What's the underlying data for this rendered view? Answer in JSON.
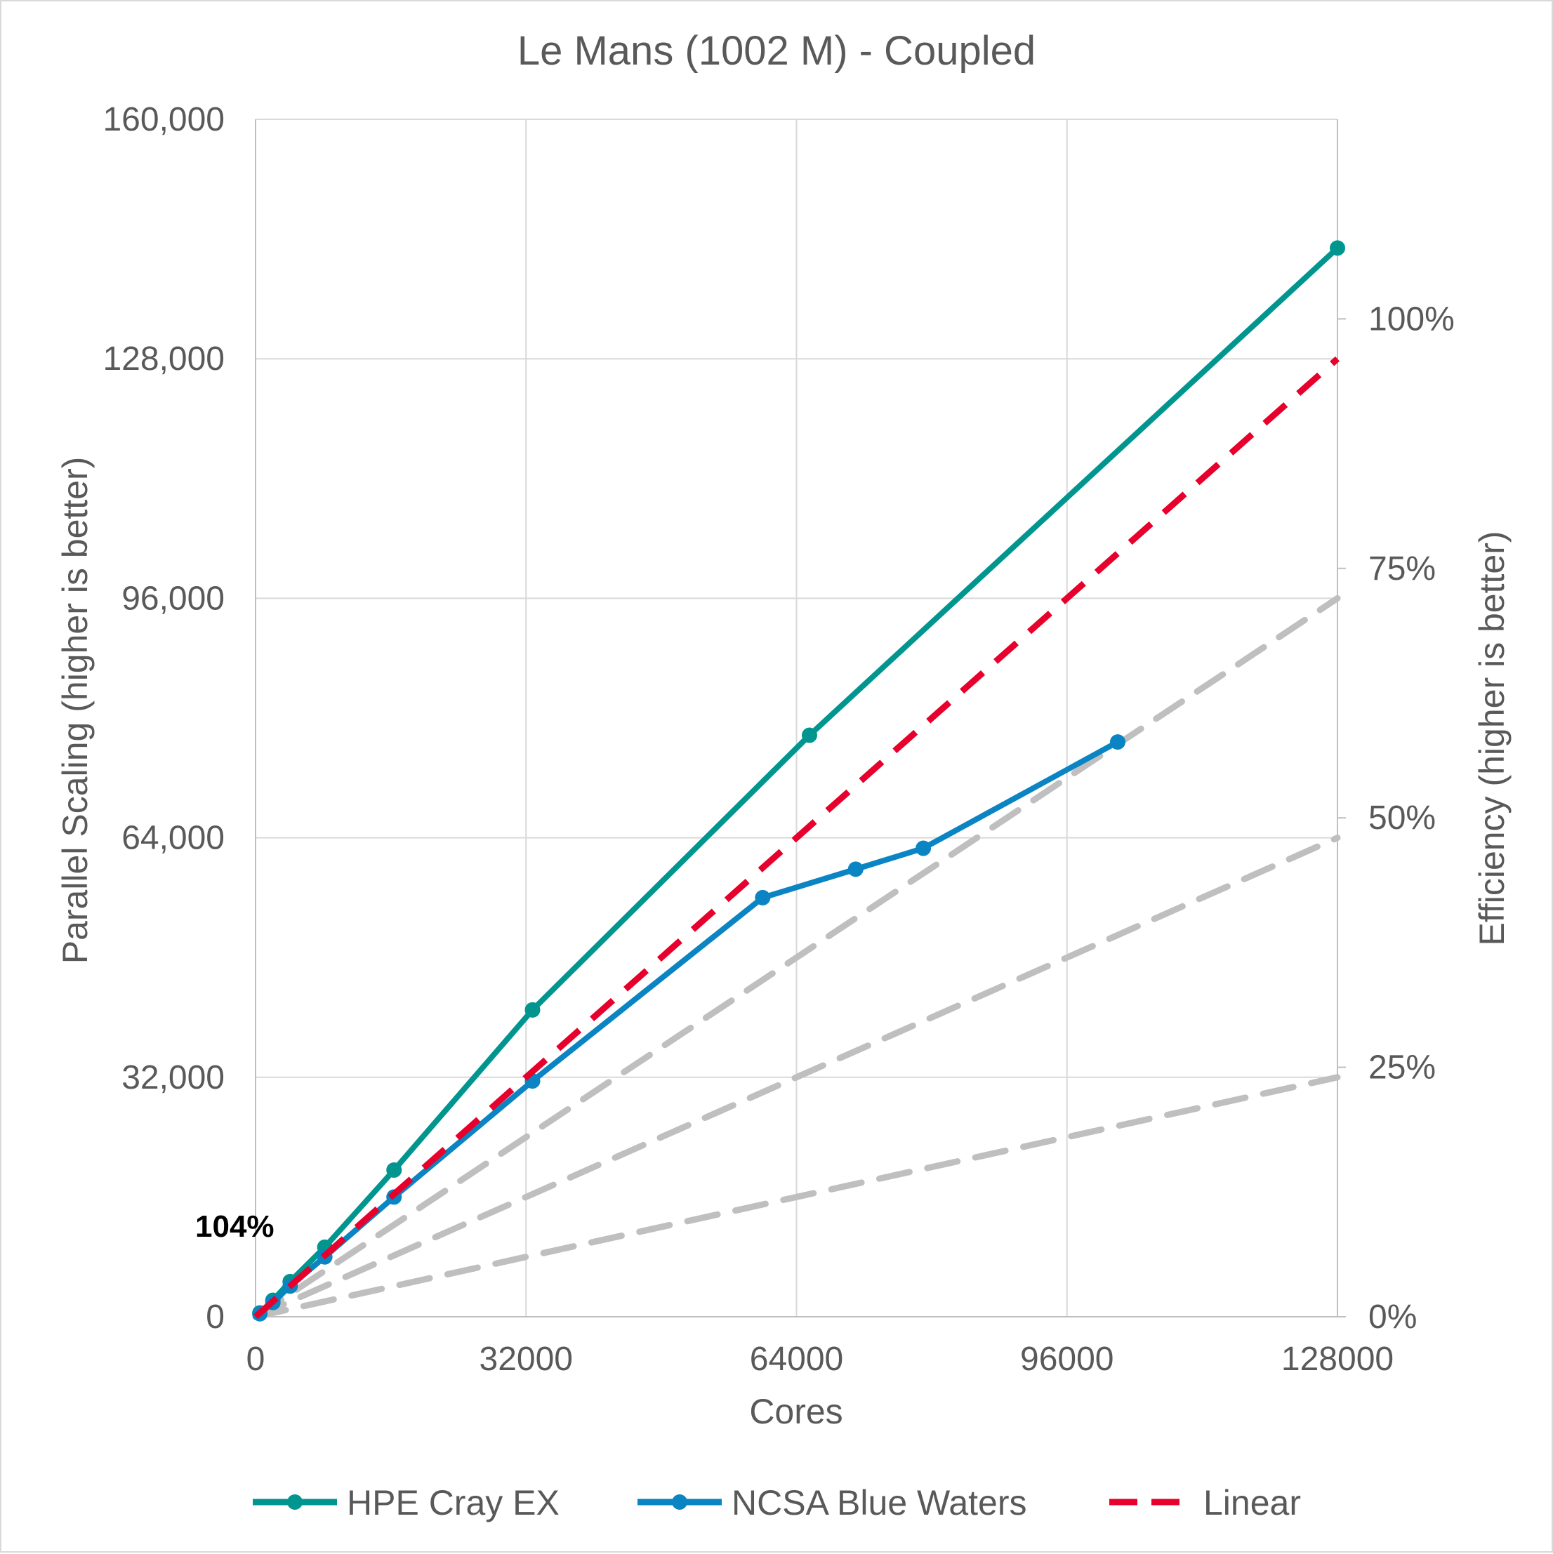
{
  "chart_data": {
    "type": "line",
    "title": "Le Mans (1002 M) - Coupled",
    "xlabel": "Cores",
    "ylabel": "Parallel Scaling (higher is better)",
    "y2label": "Efficiency (higher is better)",
    "xlim": [
      0,
      128000
    ],
    "ylim": [
      0,
      160000
    ],
    "y2lim": [
      0,
      1.2
    ],
    "x_ticks": [
      0,
      32000,
      64000,
      96000,
      128000
    ],
    "x_tick_labels": [
      "0",
      "32000",
      "64000",
      "96000",
      "128000"
    ],
    "y_ticks": [
      0,
      32000,
      64000,
      96000,
      128000,
      160000
    ],
    "y_tick_labels": [
      "0",
      "32,000",
      "64,000",
      "96,000",
      "128,000",
      "160,000"
    ],
    "y2_ticks": [
      0,
      0.25,
      0.5,
      0.75,
      1.0
    ],
    "y2_tick_labels": [
      "0%",
      "25%",
      "50%",
      "75%",
      "100%"
    ],
    "grid": true,
    "legend_position": "bottom",
    "series": [
      {
        "name": "HPE Cray EX",
        "color": "#00968f",
        "style": "solid",
        "marker": true,
        "points": [
          [
            512,
            512
          ],
          [
            2048,
            2200
          ],
          [
            4096,
            4700
          ],
          [
            8192,
            9300
          ],
          [
            16384,
            19600
          ],
          [
            32768,
            41000
          ],
          [
            65536,
            77700
          ],
          [
            128000,
            142800
          ]
        ]
      },
      {
        "name": "NCSA Blue Waters",
        "color": "#0a84c2",
        "style": "solid",
        "marker": true,
        "points": [
          [
            512,
            400
          ],
          [
            2048,
            1900
          ],
          [
            4096,
            4100
          ],
          [
            8192,
            8000
          ],
          [
            16384,
            16000
          ],
          [
            32768,
            31500
          ],
          [
            60000,
            56000
          ],
          [
            71000,
            59800
          ],
          [
            79000,
            62600
          ],
          [
            102000,
            76800
          ]
        ]
      },
      {
        "name": "Linear",
        "color": "#e8002d",
        "style": "dashed",
        "marker": false,
        "points": [
          [
            0,
            0
          ],
          [
            128000,
            128000
          ]
        ]
      }
    ],
    "reference_lines": {
      "color": "#bfbfbf",
      "style": "dashed",
      "efficiency_levels": [
        0.25,
        0.5,
        0.75
      ]
    },
    "annotations": [
      {
        "text": "104%",
        "color": "#00968f"
      }
    ]
  }
}
